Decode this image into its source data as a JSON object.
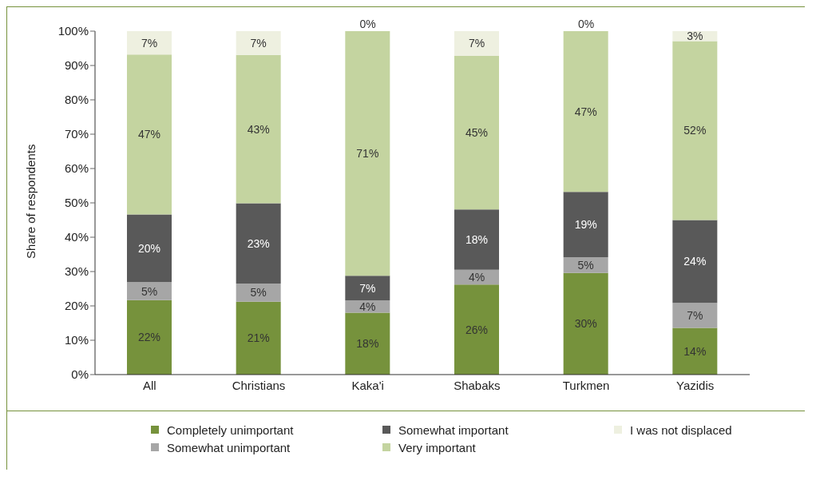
{
  "chart_data": {
    "type": "bar",
    "stacked": true,
    "ylabel": "Share of respondents",
    "categories": [
      "All",
      "Christians",
      "Kaka'i",
      "Shabaks",
      "Turkmen",
      "Yazidis"
    ],
    "ylim": [
      0,
      100
    ],
    "yticks": [
      {
        "value": 0,
        "label": "0%"
      },
      {
        "value": 10,
        "label": "10%"
      },
      {
        "value": 20,
        "label": "20%"
      },
      {
        "value": 30,
        "label": "30%"
      },
      {
        "value": 40,
        "label": "40%"
      },
      {
        "value": 50,
        "label": "50%"
      },
      {
        "value": 60,
        "label": "60%"
      },
      {
        "value": 70,
        "label": "70%"
      },
      {
        "value": 80,
        "label": "80%"
      },
      {
        "value": 90,
        "label": "90%"
      },
      {
        "value": 100,
        "label": "100%"
      }
    ],
    "grid": false,
    "legend": "bottom",
    "series": [
      {
        "name": "Completely unimportant",
        "color": "#76923c",
        "values": [
          21.7,
          21.2,
          18.0,
          26.2,
          29.6,
          13.6
        ],
        "value_labels": [
          "22%",
          "21%",
          "18%",
          "26%",
          "30%",
          "14%"
        ]
      },
      {
        "name": "Somewhat unimportant",
        "color": "#a6a6a6",
        "values": [
          5.2,
          5.3,
          3.6,
          4.3,
          4.6,
          7.3
        ],
        "value_labels": [
          "5%",
          "5%",
          "4%",
          "4%",
          "5%",
          "7%"
        ]
      },
      {
        "name": "Somewhat important",
        "color": "#595959",
        "values": [
          19.7,
          23.4,
          7.2,
          17.6,
          19.0,
          24.1
        ],
        "value_labels": [
          "20%",
          "23%",
          "7%",
          "18%",
          "19%",
          "24%"
        ]
      },
      {
        "name": "Very important",
        "color": "#c4d4a0",
        "values": [
          46.6,
          43.2,
          71.2,
          44.7,
          46.8,
          52.1
        ],
        "value_labels": [
          "47%",
          "43%",
          "71%",
          "45%",
          "47%",
          "52%"
        ]
      },
      {
        "name": "I was not displaced",
        "color": "#eef0e0",
        "values": [
          6.8,
          6.9,
          0,
          7.2,
          0,
          2.9
        ],
        "value_labels": [
          "7%",
          "7%",
          "0%",
          "7%",
          "0%",
          "3%"
        ]
      }
    ]
  }
}
